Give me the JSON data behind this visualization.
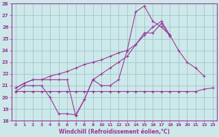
{
  "xlabel": "Windchill (Refroidissement éolien,°C)",
  "background_color": "#cce8e8",
  "grid_color": "#99bbcc",
  "line_color": "#993399",
  "ylim": [
    18,
    28
  ],
  "xlim": [
    -0.5,
    23.5
  ],
  "yticks": [
    18,
    19,
    20,
    21,
    22,
    23,
    24,
    25,
    26,
    27,
    28
  ],
  "xticks": [
    0,
    1,
    2,
    3,
    4,
    5,
    6,
    7,
    8,
    9,
    10,
    11,
    12,
    13,
    14,
    15,
    16,
    17,
    18,
    19,
    20,
    21,
    22,
    23
  ],
  "series": [
    {
      "x": [
        0,
        1,
        2,
        3,
        4,
        5,
        6,
        7,
        8,
        9,
        10,
        11,
        12,
        13,
        14,
        15,
        16,
        17,
        18
      ],
      "y": [
        20.5,
        21.0,
        21.0,
        21.0,
        20.0,
        18.6,
        18.6,
        18.5,
        19.8,
        21.5,
        21.0,
        21.0,
        21.5,
        24.0,
        27.3,
        27.8,
        26.5,
        26.0,
        25.3
      ]
    },
    {
      "x": [
        0,
        1,
        2,
        3,
        4,
        5,
        6,
        7,
        8,
        9,
        10,
        11,
        12,
        13,
        14,
        15,
        16,
        17,
        18
      ],
      "y": [
        20.8,
        21.2,
        21.5,
        21.5,
        21.5,
        21.5,
        21.5,
        18.4,
        19.8,
        21.5,
        22.0,
        22.5,
        23.0,
        23.5,
        24.5,
        25.5,
        25.5,
        26.3,
        25.2
      ]
    },
    {
      "x": [
        0,
        1,
        2,
        3,
        4,
        5,
        6,
        7,
        8,
        9,
        10,
        11,
        12,
        13,
        14,
        15,
        16,
        17,
        18,
        19,
        20,
        21,
        22
      ],
      "y": [
        20.8,
        21.2,
        21.5,
        21.5,
        21.8,
        22.0,
        22.2,
        22.5,
        22.8,
        23.0,
        23.2,
        23.5,
        23.8,
        24.0,
        24.5,
        25.3,
        26.0,
        26.5,
        25.3,
        24.0,
        23.0,
        22.5,
        21.8
      ]
    },
    {
      "x": [
        0,
        1,
        2,
        3,
        4,
        5,
        6,
        7,
        8,
        9,
        10,
        11,
        12,
        13,
        14,
        15,
        16,
        17,
        18,
        19,
        20,
        21,
        22,
        23
      ],
      "y": [
        20.5,
        20.5,
        20.5,
        20.5,
        20.5,
        20.5,
        20.5,
        20.5,
        20.5,
        20.5,
        20.5,
        20.5,
        20.5,
        20.5,
        20.5,
        20.5,
        20.5,
        20.5,
        20.5,
        20.5,
        20.5,
        20.5,
        20.7,
        20.8
      ]
    }
  ]
}
